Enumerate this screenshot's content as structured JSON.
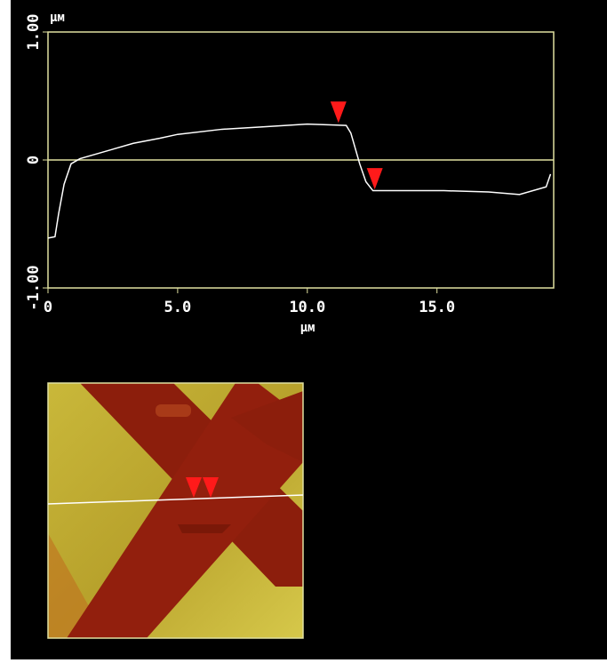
{
  "chart_data": {
    "type": "line",
    "y_label": "µм",
    "x_label": "µм",
    "xlim": [
      0,
      19.5
    ],
    "xticks": [
      0,
      {
        "value": 5,
        "label": "5.0"
      },
      {
        "value": 10,
        "label": "10.0"
      },
      {
        "value": 15,
        "label": "15.0"
      }
    ],
    "ylim": [
      -1,
      1
    ],
    "yticks": [
      {
        "value": -1,
        "label": "-1.00"
      },
      0,
      {
        "value": 1,
        "label": "1.00"
      }
    ],
    "reference_line": 0,
    "frame_color": "#e0e0a0",
    "series": [
      {
        "color": "#ffffff",
        "x": [
          0,
          0.27,
          0.41,
          0.62,
          0.89,
          1.23,
          2.26,
          3.29,
          4.32,
          5.0,
          6.71,
          8.42,
          10.0,
          11.5,
          11.68,
          12.02,
          12.26,
          12.53,
          13.56,
          15.27,
          16.99,
          18.18,
          19.21,
          19.38
        ],
        "values": [
          -0.61,
          -0.6,
          -0.42,
          -0.19,
          -0.03,
          0.01,
          0.07,
          0.13,
          0.17,
          0.2,
          0.24,
          0.26,
          0.28,
          0.27,
          0.21,
          -0.03,
          -0.17,
          -0.24,
          -0.24,
          -0.24,
          -0.25,
          -0.27,
          -0.21,
          -0.11
        ]
      }
    ],
    "cursors": {
      "color": "#ff1a1a",
      "x": [
        11.2,
        12.6
      ],
      "y": [
        0.29,
        -0.23
      ]
    }
  }
}
